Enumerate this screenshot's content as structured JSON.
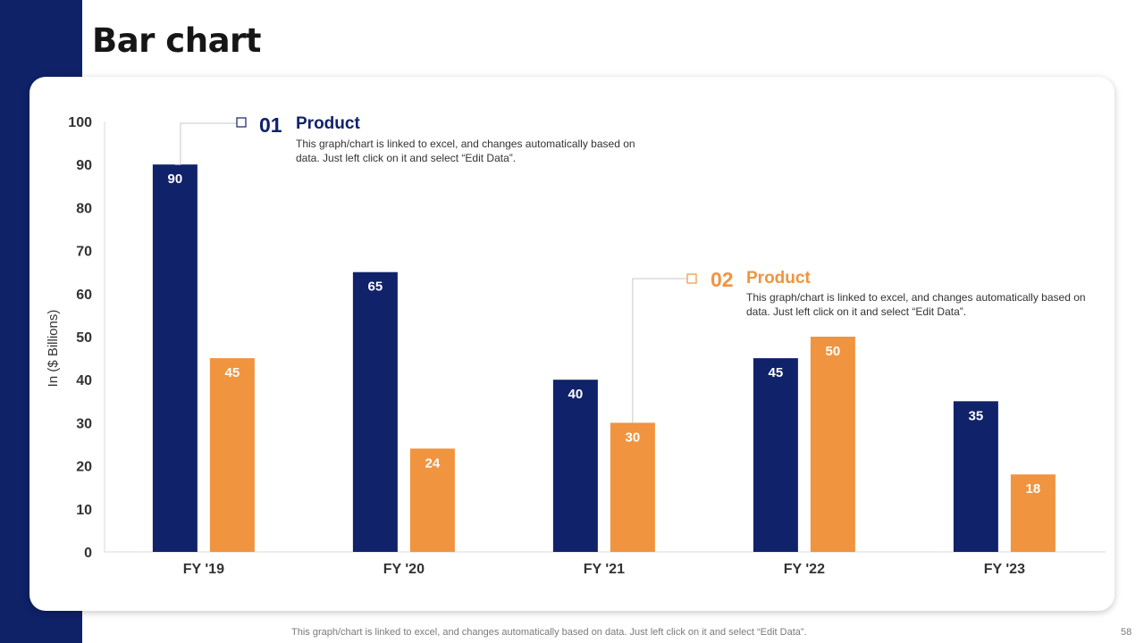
{
  "slide": {
    "title": "Bar chart",
    "footer_note": "This graph/chart is linked to excel,  and changes automatically based on data. Just left click on it and select “Edit Data”.",
    "page_number": "58"
  },
  "colors": {
    "band": "#0f2167",
    "series1": "#10226a",
    "series2": "#f09440",
    "axis_text": "#333333"
  },
  "callouts": [
    {
      "number": "01",
      "heading": "Product",
      "text": "This graph/chart is linked to excel, and changes automatically based on data. Just left click on it and select “Edit Data”."
    },
    {
      "number": "02",
      "heading": "Product",
      "text": "This graph/chart is linked to excel, and changes automatically based on data. Just left click on it and select “Edit Data”."
    }
  ],
  "chart_data": {
    "type": "bar",
    "title": "",
    "xlabel": "",
    "ylabel": "In ($ Billions)",
    "ylim": [
      0,
      100
    ],
    "yticks": [
      0,
      10,
      20,
      30,
      40,
      50,
      60,
      70,
      80,
      90,
      100
    ],
    "categories": [
      "FY '19",
      "FY '20",
      "FY '21",
      "FY '22",
      "FY '23"
    ],
    "series": [
      {
        "name": "Product 01",
        "values": [
          90,
          65,
          40,
          45,
          35
        ]
      },
      {
        "name": "Product 02",
        "values": [
          45,
          24,
          30,
          50,
          18
        ]
      }
    ],
    "grid": false,
    "legend": "none"
  }
}
